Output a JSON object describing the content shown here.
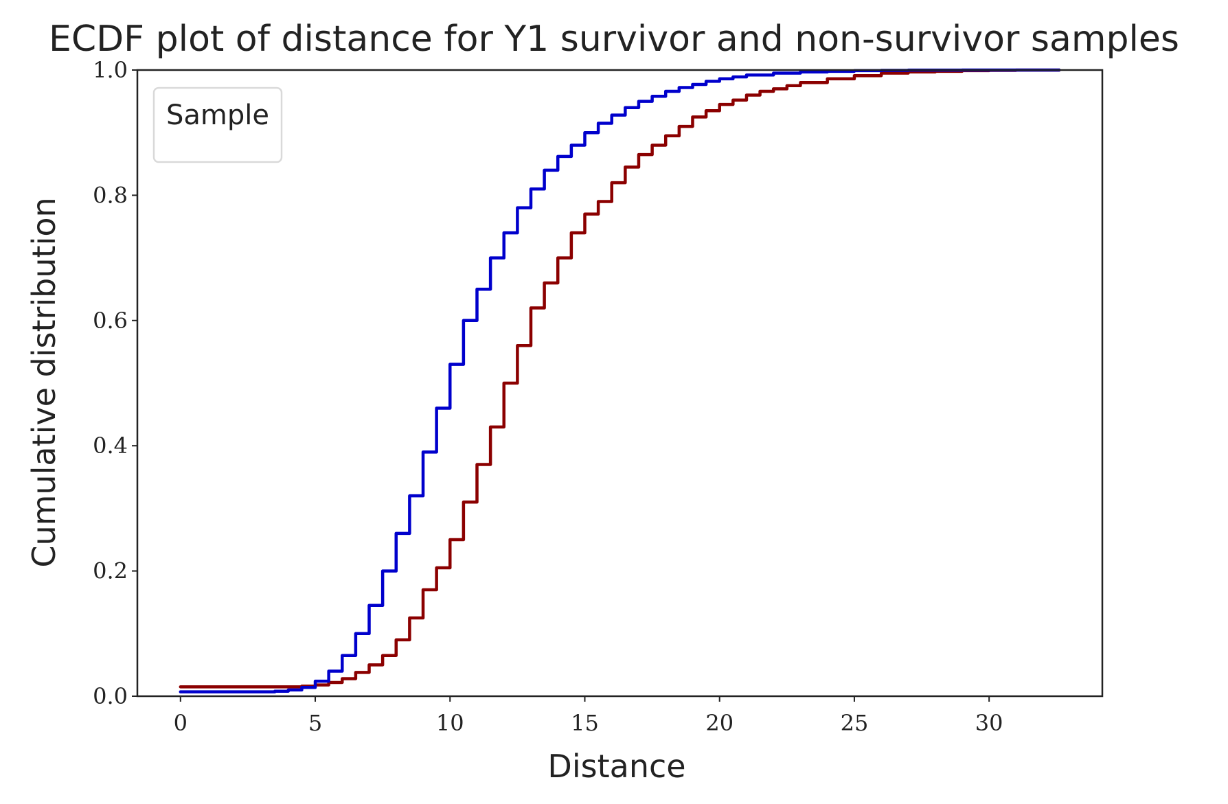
{
  "chart_data": {
    "type": "line",
    "title": "ECDF plot of distance for Y1 survivor and non-survivor samples",
    "xlabel": "Distance",
    "ylabel": "Cumulative distribution",
    "xlim": [
      -1.6,
      34.2
    ],
    "ylim": [
      0.0,
      1.0
    ],
    "xticks": [
      0,
      5,
      10,
      15,
      20,
      25,
      30
    ],
    "xtick_labels": [
      "0",
      "5",
      "10",
      "15",
      "20",
      "25",
      "30"
    ],
    "yticks": [
      0.0,
      0.2,
      0.4,
      0.6,
      0.8,
      1.0
    ],
    "ytick_labels": [
      "0.0",
      "0.2",
      "0.4",
      "0.6",
      "0.8",
      "1.0"
    ],
    "grid": false,
    "legend": {
      "title": "Sample",
      "placement": "top-left",
      "entries": []
    },
    "series": [
      {
        "color": "#8b0000",
        "x": [
          0,
          1,
          2,
          3,
          4,
          4.5,
          5,
          5.5,
          6,
          6.5,
          7,
          7.5,
          8,
          8.5,
          9,
          9.5,
          10,
          10.5,
          11,
          11.5,
          12,
          12.5,
          13,
          13.5,
          14,
          14.5,
          15,
          15.5,
          16,
          16.5,
          17,
          17.5,
          18,
          18.5,
          19,
          19.5,
          20,
          20.5,
          21,
          21.5,
          22,
          22.5,
          23,
          24,
          25,
          26,
          27,
          28,
          29,
          30,
          31,
          32.6
        ],
        "y": [
          0.015,
          0.015,
          0.015,
          0.015,
          0.015,
          0.016,
          0.018,
          0.022,
          0.028,
          0.038,
          0.05,
          0.065,
          0.09,
          0.125,
          0.17,
          0.205,
          0.25,
          0.31,
          0.37,
          0.43,
          0.5,
          0.56,
          0.62,
          0.66,
          0.7,
          0.74,
          0.77,
          0.79,
          0.82,
          0.845,
          0.865,
          0.88,
          0.895,
          0.91,
          0.925,
          0.935,
          0.945,
          0.952,
          0.96,
          0.966,
          0.97,
          0.975,
          0.98,
          0.986,
          0.991,
          0.995,
          0.997,
          0.998,
          0.999,
          0.9995,
          0.9998,
          1.0
        ]
      },
      {
        "color": "#0000cc",
        "x": [
          0,
          1,
          2,
          3,
          3.5,
          4,
          4.5,
          5,
          5.5,
          6,
          6.5,
          7,
          7.5,
          8,
          8.5,
          9,
          9.5,
          10,
          10.5,
          11,
          11.5,
          12,
          12.5,
          13,
          13.5,
          14,
          14.5,
          15,
          15.5,
          16,
          16.5,
          17,
          17.5,
          18,
          18.5,
          19,
          19.5,
          20,
          20.5,
          21,
          22,
          23,
          24,
          25,
          26,
          27,
          28,
          29,
          30,
          31,
          32.6
        ],
        "y": [
          0.007,
          0.007,
          0.007,
          0.007,
          0.008,
          0.01,
          0.014,
          0.024,
          0.04,
          0.065,
          0.1,
          0.145,
          0.2,
          0.26,
          0.32,
          0.39,
          0.46,
          0.53,
          0.6,
          0.65,
          0.7,
          0.74,
          0.78,
          0.81,
          0.84,
          0.862,
          0.88,
          0.9,
          0.915,
          0.928,
          0.94,
          0.95,
          0.958,
          0.966,
          0.972,
          0.977,
          0.982,
          0.986,
          0.989,
          0.992,
          0.995,
          0.997,
          0.998,
          0.999,
          0.9995,
          0.9998,
          0.9999,
          1.0,
          1.0,
          1.0,
          1.0
        ]
      }
    ]
  }
}
